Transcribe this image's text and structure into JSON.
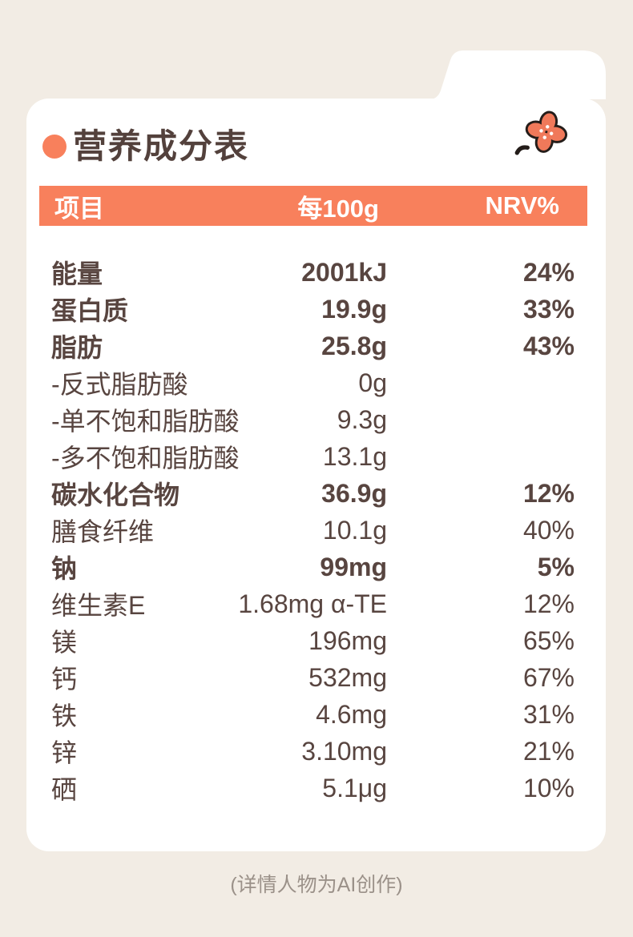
{
  "colors": {
    "background": "#F2ECE4",
    "card": "#FFFFFF",
    "accent": "#F8805C",
    "text": "#584540",
    "headerText": "#FFFFFF",
    "footerText": "#9B9189",
    "flowerFill": "#F0795A",
    "flowerOutline": "#241D1A"
  },
  "title": "营养成分表",
  "table": {
    "header": {
      "item": "项目",
      "amount": "每100g",
      "nrv": "NRV%"
    },
    "rows": [
      {
        "name": "能量",
        "amount": "2001kJ",
        "nrv": "24%",
        "bold": true
      },
      {
        "name": "蛋白质",
        "amount": "19.9g",
        "nrv": "33%",
        "bold": true
      },
      {
        "name": "脂肪",
        "amount": "25.8g",
        "nrv": "43%",
        "bold": true
      },
      {
        "name": "-反式脂肪酸",
        "amount": "0g",
        "nrv": "",
        "bold": false
      },
      {
        "name": "-单不饱和脂肪酸",
        "amount": "9.3g",
        "nrv": "",
        "bold": false
      },
      {
        "name": "-多不饱和脂肪酸",
        "amount": "13.1g",
        "nrv": "",
        "bold": false
      },
      {
        "name": "碳水化合物",
        "amount": "36.9g",
        "nrv": "12%",
        "bold": true
      },
      {
        "name": "膳食纤维",
        "amount": "10.1g",
        "nrv": "40%",
        "bold": false
      },
      {
        "name": "钠",
        "amount": "99mg",
        "nrv": "5%",
        "bold": true
      },
      {
        "name": "维生素E",
        "amount": "1.68mg α-TE",
        "nrv": "12%",
        "bold": false
      },
      {
        "name": "镁",
        "amount": "196mg",
        "nrv": "65%",
        "bold": false
      },
      {
        "name": "钙",
        "amount": "532mg",
        "nrv": "67%",
        "bold": false
      },
      {
        "name": "铁",
        "amount": "4.6mg",
        "nrv": "31%",
        "bold": false
      },
      {
        "name": "锌",
        "amount": "3.10mg",
        "nrv": "21%",
        "bold": false
      },
      {
        "name": "硒",
        "amount": "5.1μg",
        "nrv": "10%",
        "bold": false
      }
    ]
  },
  "footer": {
    "note": "(详情人物为AI创作)"
  }
}
